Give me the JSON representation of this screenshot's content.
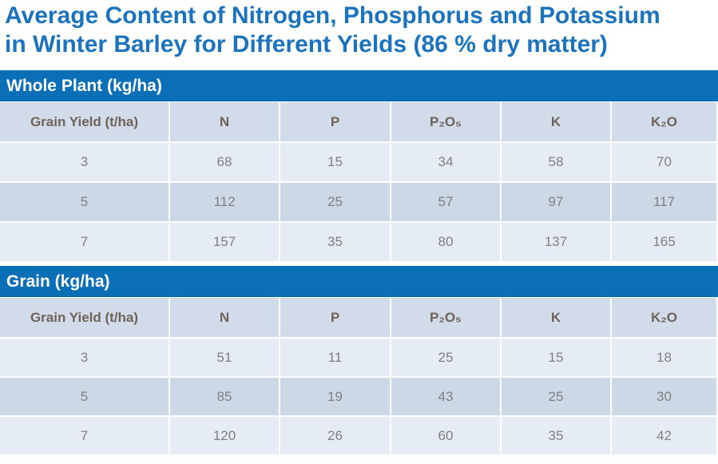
{
  "title": [
    "Average Content of Nitrogen, Phosphorus and Potassium",
    "in Winter Barley for Different Yields (86 % dry matter)"
  ],
  "sections": [
    {
      "heading": "Whole Plant (kg/ha)",
      "columns": [
        "Grain Yield (t/ha)",
        "N",
        "P",
        "P₂O₅",
        "K",
        "K₂O"
      ],
      "rows": [
        [
          3,
          68,
          15,
          34,
          58,
          70
        ],
        [
          5,
          112,
          25,
          57,
          97,
          117
        ],
        [
          7,
          157,
          35,
          80,
          137,
          165
        ]
      ]
    },
    {
      "heading": "Grain (kg/ha)",
      "columns": [
        "Grain Yield (t/ha)",
        "N",
        "P",
        "P₂O₅",
        "K",
        "K₂O"
      ],
      "rows": [
        [
          3,
          51,
          11,
          25,
          15,
          18
        ],
        [
          5,
          85,
          19,
          43,
          25,
          30
        ],
        [
          7,
          120,
          26,
          60,
          35,
          42
        ]
      ]
    }
  ]
}
